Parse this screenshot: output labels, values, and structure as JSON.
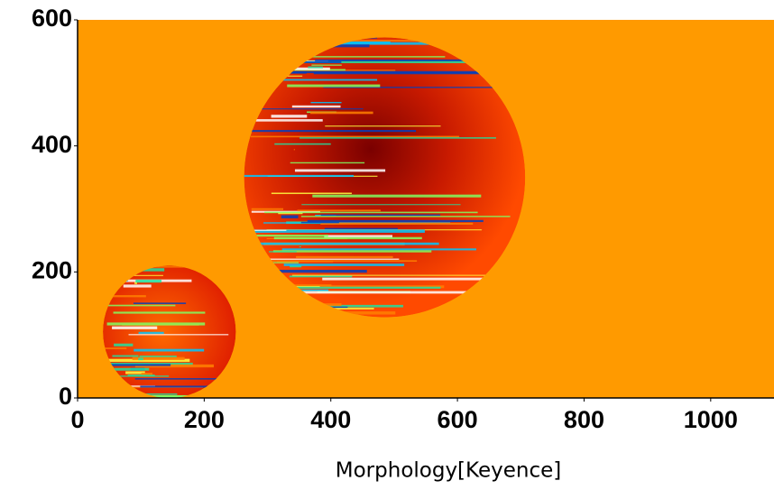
{
  "chart_data": {
    "type": "image",
    "xlabel": "Morphology[Keyence]",
    "xlim": [
      0,
      1100
    ],
    "ylim": [
      0,
      600
    ],
    "xticks": [
      0,
      200,
      400,
      600,
      800,
      1000
    ],
    "yticks": [
      0,
      200,
      400,
      600
    ],
    "background": "#ff9a00",
    "circles": [
      {
        "cx": 485,
        "cy": 350,
        "r": 222
      },
      {
        "cx": 145,
        "cy": 105,
        "r": 105
      }
    ]
  }
}
